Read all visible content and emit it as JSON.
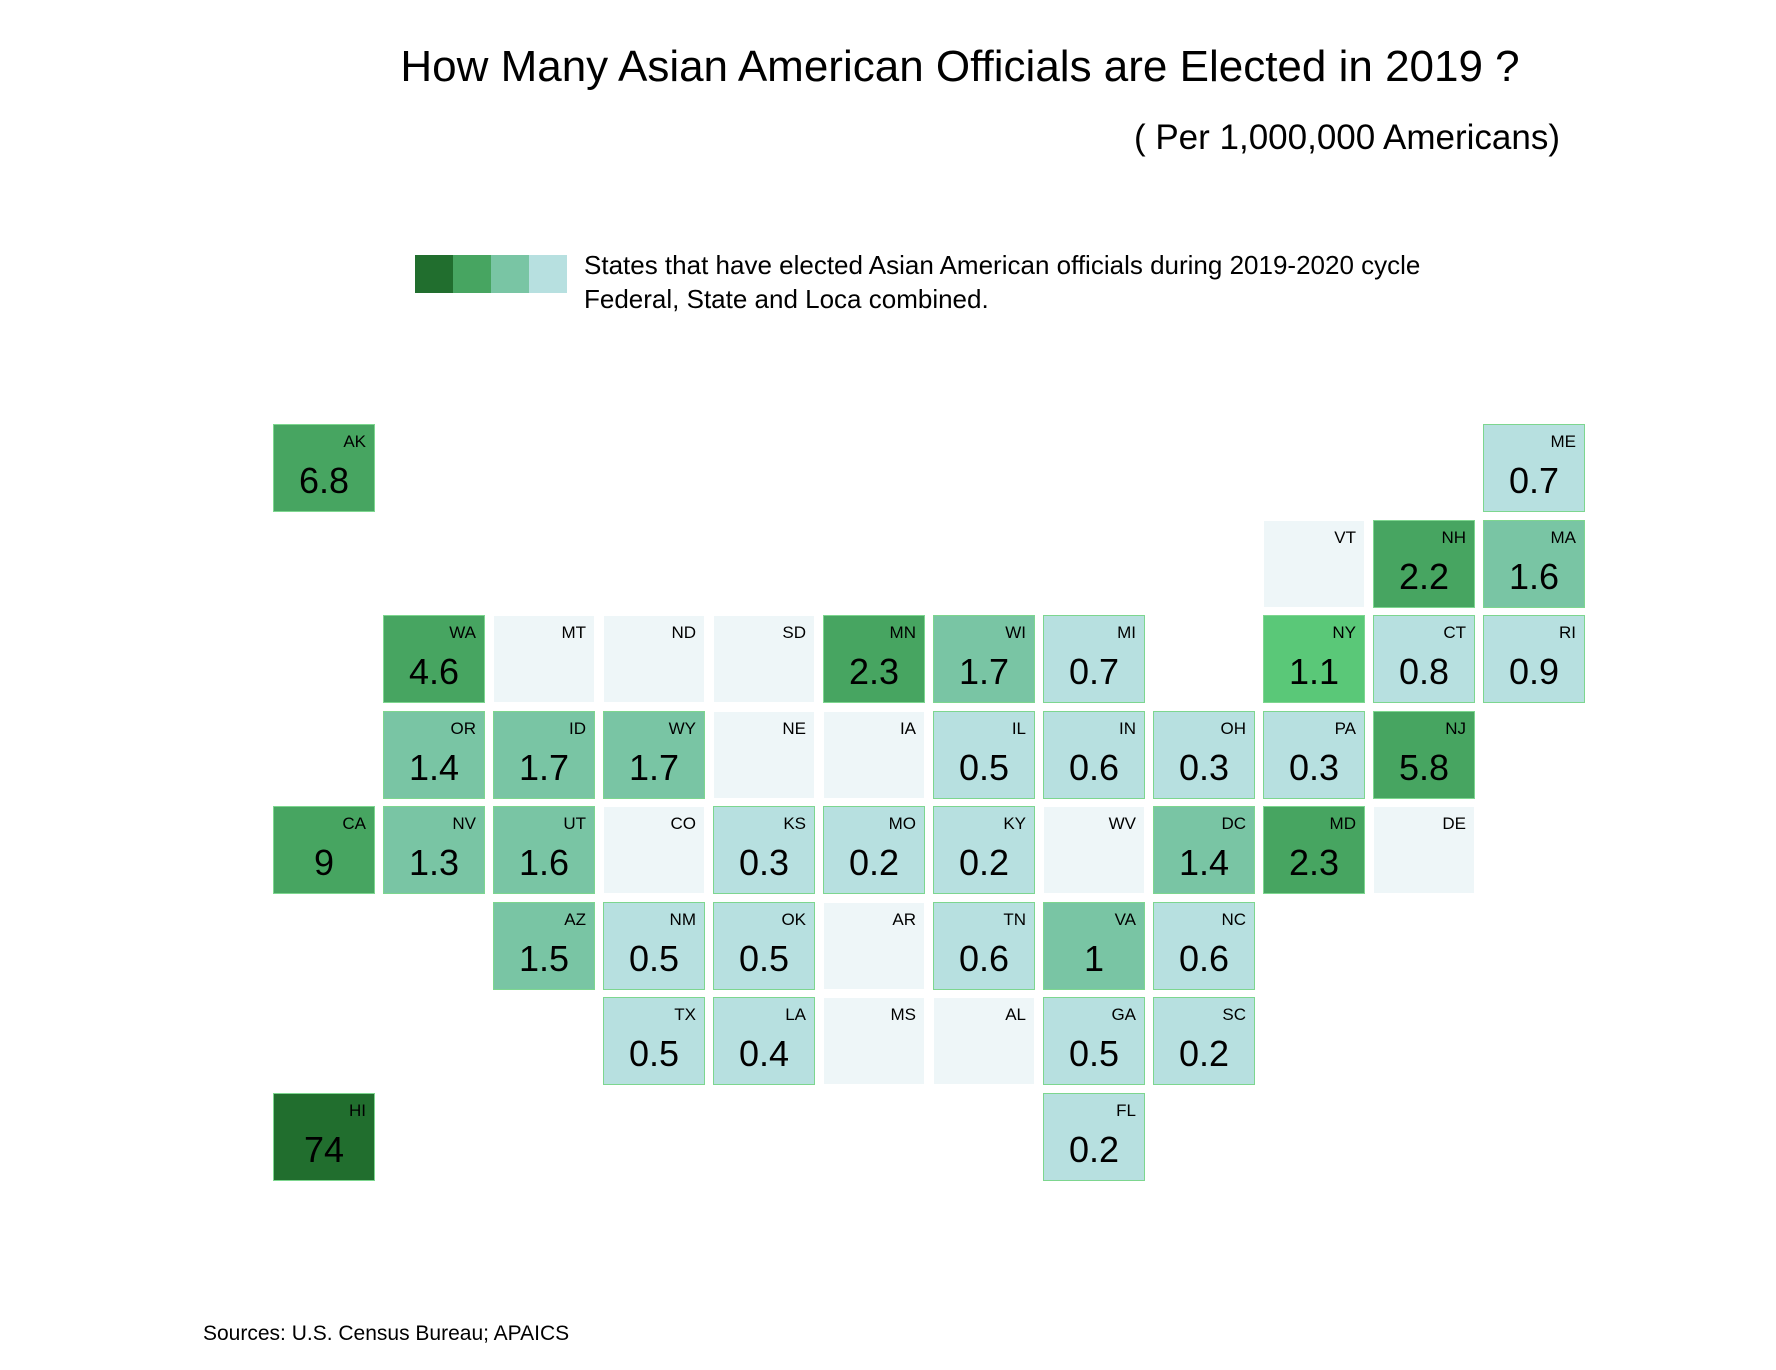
{
  "title": "How Many Asian American Officials are Elected in 2019 ?",
  "subtitle": "( Per 1,000,000 Americans)",
  "legend": {
    "line1": "States that have elected Asian American officials during 2019-2020 cycle",
    "line2": "Federal, State and Loca combined.",
    "colors": [
      "#216e2e",
      "#47a561",
      "#79c5a4",
      "#b7e0e0"
    ]
  },
  "source": "Sources: U.S. Census Bureau;  APAICS",
  "chart_data": {
    "type": "heatmap",
    "title": "How Many Asian American Officials are Elected in 2019 ?",
    "subtitle": "( Per 1,000,000 Americans)",
    "columns": 12,
    "rows": 8,
    "cells": [
      {
        "state": "AK",
        "col": 0,
        "row": 0,
        "value": "6.8",
        "color": "#47a561"
      },
      {
        "state": "ME",
        "col": 11,
        "row": 0,
        "value": "0.7",
        "color": "#b7e0e0"
      },
      {
        "state": "VT",
        "col": 9,
        "row": 1,
        "value": "",
        "color": "#eef6f8"
      },
      {
        "state": "NH",
        "col": 10,
        "row": 1,
        "value": "2.2",
        "color": "#47a561"
      },
      {
        "state": "MA",
        "col": 11,
        "row": 1,
        "value": "1.6",
        "color": "#79c5a4"
      },
      {
        "state": "WA",
        "col": 1,
        "row": 2,
        "value": "4.6",
        "color": "#47a561"
      },
      {
        "state": "MT",
        "col": 2,
        "row": 2,
        "value": "",
        "color": "#eef6f8"
      },
      {
        "state": "ND",
        "col": 3,
        "row": 2,
        "value": "",
        "color": "#eef6f8"
      },
      {
        "state": "SD",
        "col": 4,
        "row": 2,
        "value": "",
        "color": "#eef6f8"
      },
      {
        "state": "MN",
        "col": 5,
        "row": 2,
        "value": "2.3",
        "color": "#47a561"
      },
      {
        "state": "WI",
        "col": 6,
        "row": 2,
        "value": "1.7",
        "color": "#79c5a4"
      },
      {
        "state": "MI",
        "col": 7,
        "row": 2,
        "value": "0.7",
        "color": "#b7e0e0"
      },
      {
        "state": "NY",
        "col": 9,
        "row": 2,
        "value": "1.1",
        "color": "#5ac878"
      },
      {
        "state": "CT",
        "col": 10,
        "row": 2,
        "value": "0.8",
        "color": "#b7e0e0"
      },
      {
        "state": "RI",
        "col": 11,
        "row": 2,
        "value": "0.9",
        "color": "#b7e0e0"
      },
      {
        "state": "OR",
        "col": 1,
        "row": 3,
        "value": "1.4",
        "color": "#79c5a4"
      },
      {
        "state": "ID",
        "col": 2,
        "row": 3,
        "value": "1.7",
        "color": "#79c5a4"
      },
      {
        "state": "WY",
        "col": 3,
        "row": 3,
        "value": "1.7",
        "color": "#79c5a4"
      },
      {
        "state": "NE",
        "col": 4,
        "row": 3,
        "value": "",
        "color": "#eef6f8"
      },
      {
        "state": "IA",
        "col": 5,
        "row": 3,
        "value": "",
        "color": "#eef6f8"
      },
      {
        "state": "IL",
        "col": 6,
        "row": 3,
        "value": "0.5",
        "color": "#b7e0e0"
      },
      {
        "state": "IN",
        "col": 7,
        "row": 3,
        "value": "0.6",
        "color": "#b7e0e0"
      },
      {
        "state": "OH",
        "col": 8,
        "row": 3,
        "value": "0.3",
        "color": "#b7e0e0"
      },
      {
        "state": "PA",
        "col": 9,
        "row": 3,
        "value": "0.3",
        "color": "#b7e0e0"
      },
      {
        "state": "NJ",
        "col": 10,
        "row": 3,
        "value": "5.8",
        "color": "#47a561"
      },
      {
        "state": "CA",
        "col": 0,
        "row": 4,
        "value": "9",
        "color": "#47a561"
      },
      {
        "state": "NV",
        "col": 1,
        "row": 4,
        "value": "1.3",
        "color": "#79c5a4"
      },
      {
        "state": "UT",
        "col": 2,
        "row": 4,
        "value": "1.6",
        "color": "#79c5a4"
      },
      {
        "state": "CO",
        "col": 3,
        "row": 4,
        "value": "",
        "color": "#eef6f8"
      },
      {
        "state": "KS",
        "col": 4,
        "row": 4,
        "value": "0.3",
        "color": "#b7e0e0"
      },
      {
        "state": "MO",
        "col": 5,
        "row": 4,
        "value": "0.2",
        "color": "#b7e0e0"
      },
      {
        "state": "KY",
        "col": 6,
        "row": 4,
        "value": "0.2",
        "color": "#b7e0e0"
      },
      {
        "state": "WV",
        "col": 7,
        "row": 4,
        "value": "",
        "color": "#eef6f8"
      },
      {
        "state": "DC",
        "col": 8,
        "row": 4,
        "value": "1.4",
        "color": "#79c5a4"
      },
      {
        "state": "MD",
        "col": 9,
        "row": 4,
        "value": "2.3",
        "color": "#47a561"
      },
      {
        "state": "DE",
        "col": 10,
        "row": 4,
        "value": "",
        "color": "#eef6f8"
      },
      {
        "state": "AZ",
        "col": 2,
        "row": 5,
        "value": "1.5",
        "color": "#79c5a4"
      },
      {
        "state": "NM",
        "col": 3,
        "row": 5,
        "value": "0.5",
        "color": "#b7e0e0"
      },
      {
        "state": "OK",
        "col": 4,
        "row": 5,
        "value": "0.5",
        "color": "#b7e0e0"
      },
      {
        "state": "AR",
        "col": 5,
        "row": 5,
        "value": "",
        "color": "#eef6f8"
      },
      {
        "state": "TN",
        "col": 6,
        "row": 5,
        "value": "0.6",
        "color": "#b7e0e0"
      },
      {
        "state": "VA",
        "col": 7,
        "row": 5,
        "value": "1",
        "color": "#79c5a4"
      },
      {
        "state": "NC",
        "col": 8,
        "row": 5,
        "value": "0.6",
        "color": "#b7e0e0"
      },
      {
        "state": "TX",
        "col": 3,
        "row": 6,
        "value": "0.5",
        "color": "#b7e0e0"
      },
      {
        "state": "LA",
        "col": 4,
        "row": 6,
        "value": "0.4",
        "color": "#b7e0e0"
      },
      {
        "state": "MS",
        "col": 5,
        "row": 6,
        "value": "",
        "color": "#eef6f8"
      },
      {
        "state": "AL",
        "col": 6,
        "row": 6,
        "value": "",
        "color": "#eef6f8"
      },
      {
        "state": "GA",
        "col": 7,
        "row": 6,
        "value": "0.5",
        "color": "#b7e0e0"
      },
      {
        "state": "SC",
        "col": 8,
        "row": 6,
        "value": "0.2",
        "color": "#b7e0e0"
      },
      {
        "state": "HI",
        "col": 0,
        "row": 7,
        "value": "74",
        "color": "#216e2e"
      },
      {
        "state": "FL",
        "col": 7,
        "row": 7,
        "value": "0.2",
        "color": "#b7e0e0"
      }
    ]
  }
}
